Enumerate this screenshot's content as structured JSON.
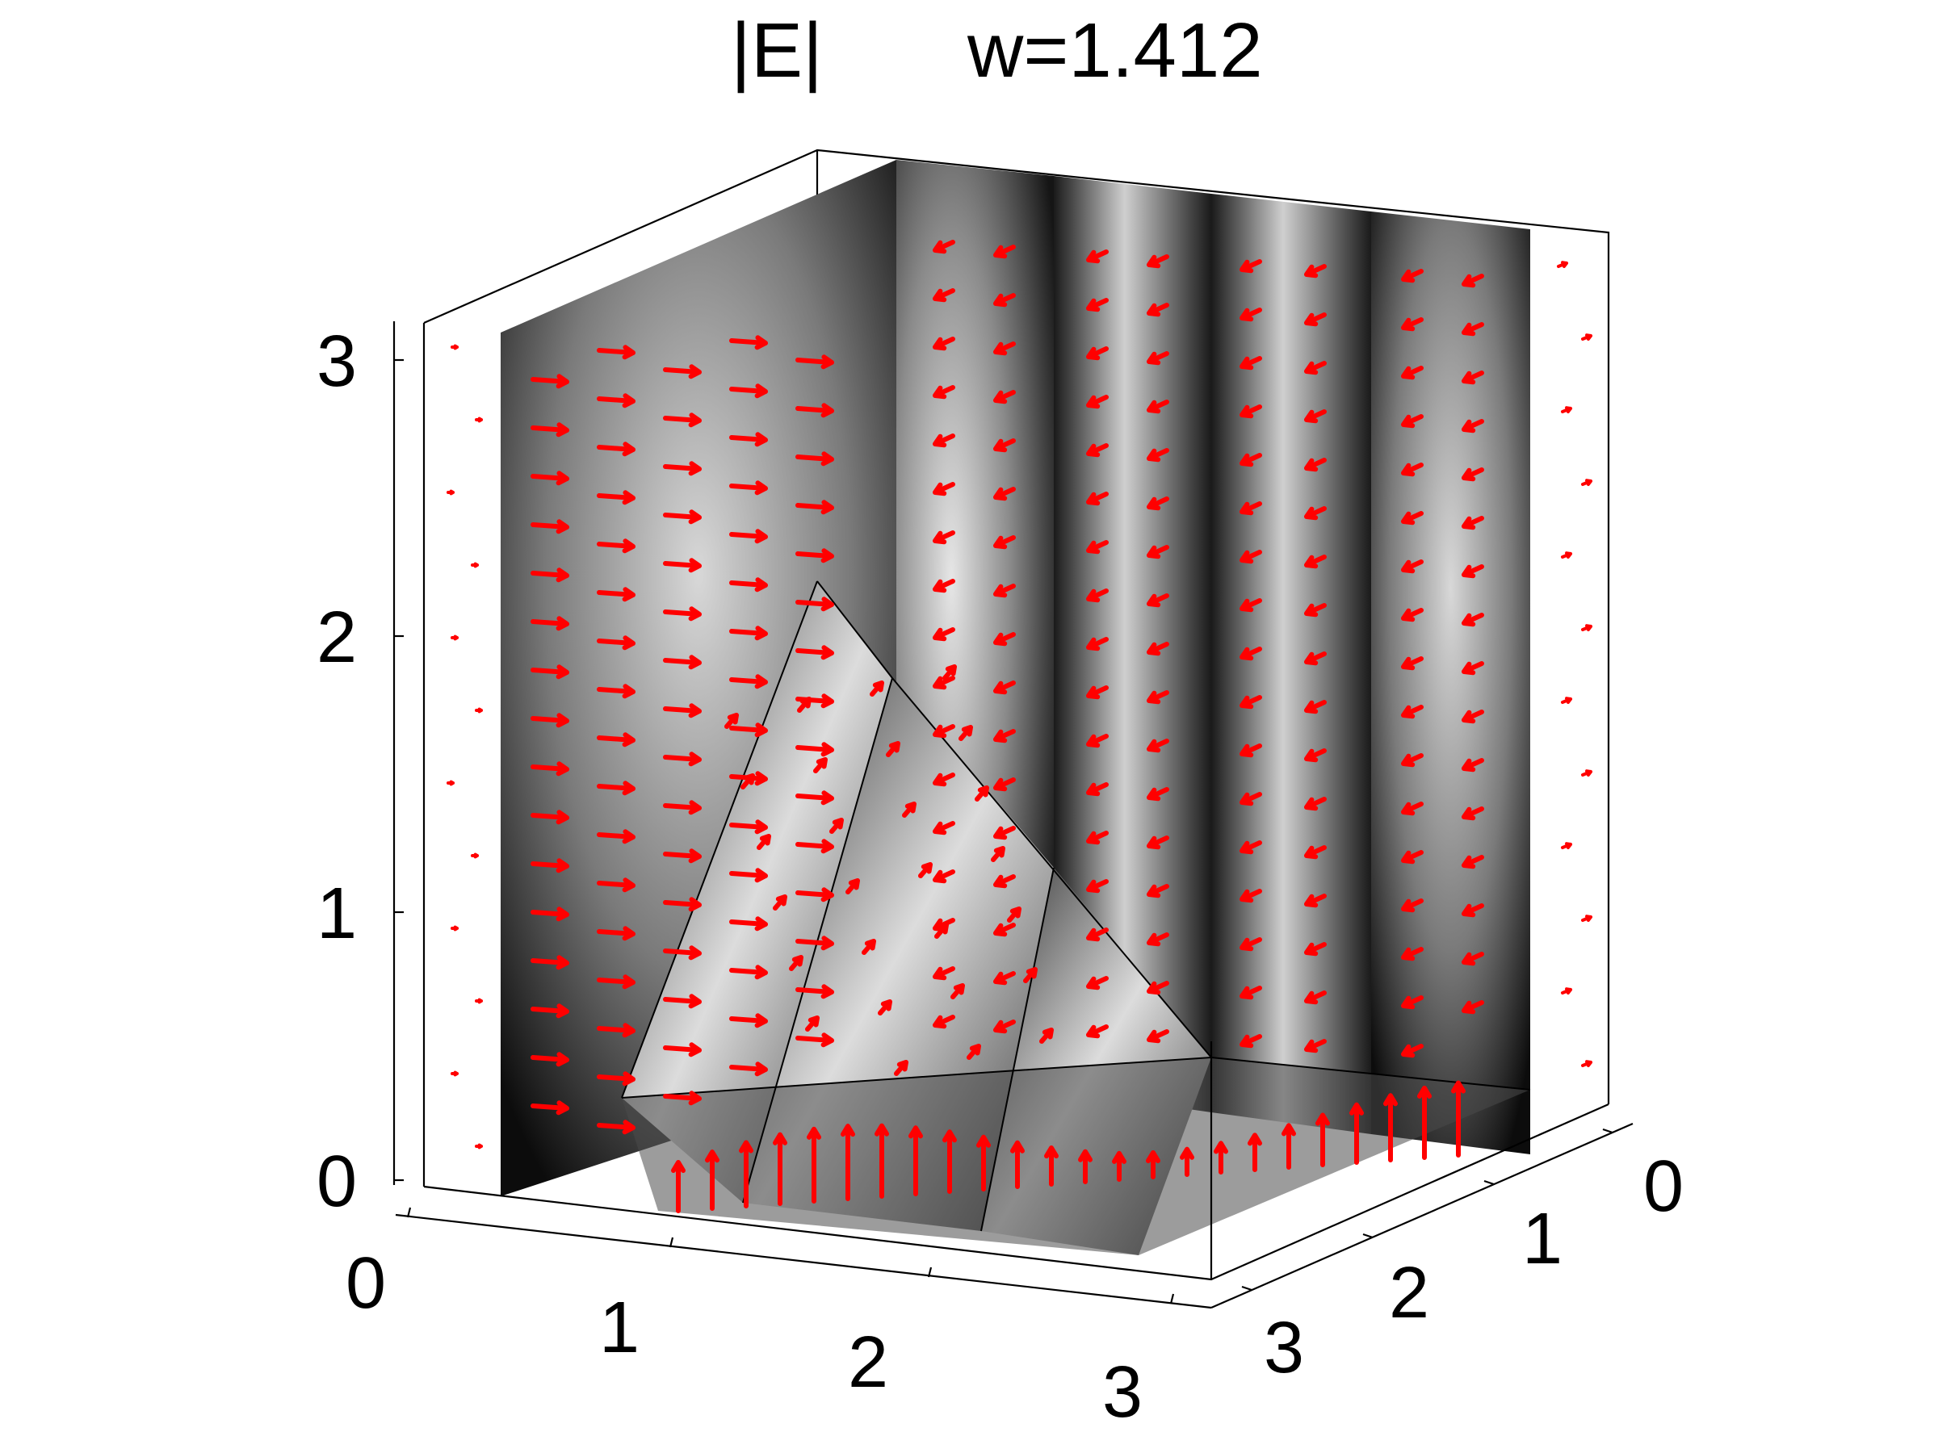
{
  "figure": {
    "title_left": "|E|",
    "title_right": "w=1.412"
  },
  "colors": {
    "arrow": "#ff0000",
    "surface_dark": "#0c0c0c",
    "surface_light": "#e0e0e0",
    "axes": "#000000",
    "background": "#ffffff"
  },
  "chart_data": {
    "type": "3d-slice-quiver",
    "title": "|E|      w=1.412",
    "surface_quantity": "|E|",
    "surface_colormap": "gray",
    "vector_color": "#ff0000",
    "parameter": "w=1.412",
    "x_ticks": [
      "0",
      "1",
      "2",
      "3"
    ],
    "y_ticks": [
      "0",
      "1",
      "2",
      "3"
    ],
    "z_ticks": [
      "0",
      "1",
      "2",
      "3"
    ],
    "xlim": [
      0,
      3.14
    ],
    "ylim": [
      0,
      3.14
    ],
    "zlim": [
      0,
      3.14
    ],
    "grid": false,
    "legend": "none",
    "slices": [
      {
        "plane": "x",
        "value": 0.4
      },
      {
        "plane": "x",
        "value": 1.0
      },
      {
        "plane": "x",
        "value": 1.6
      },
      {
        "plane": "x",
        "value": 2.2
      },
      {
        "plane": "x",
        "value": 2.8
      },
      {
        "plane": "oblique",
        "through": [
          [
            0.4,
            0.0,
            0.0
          ],
          [
            1.0,
            0.0,
            0.0
          ]
        ]
      },
      {
        "plane": "oblique",
        "through": [
          [
            1.6,
            0.0,
            0.0
          ],
          [
            2.2,
            0.0,
            0.0
          ]
        ]
      }
    ]
  }
}
